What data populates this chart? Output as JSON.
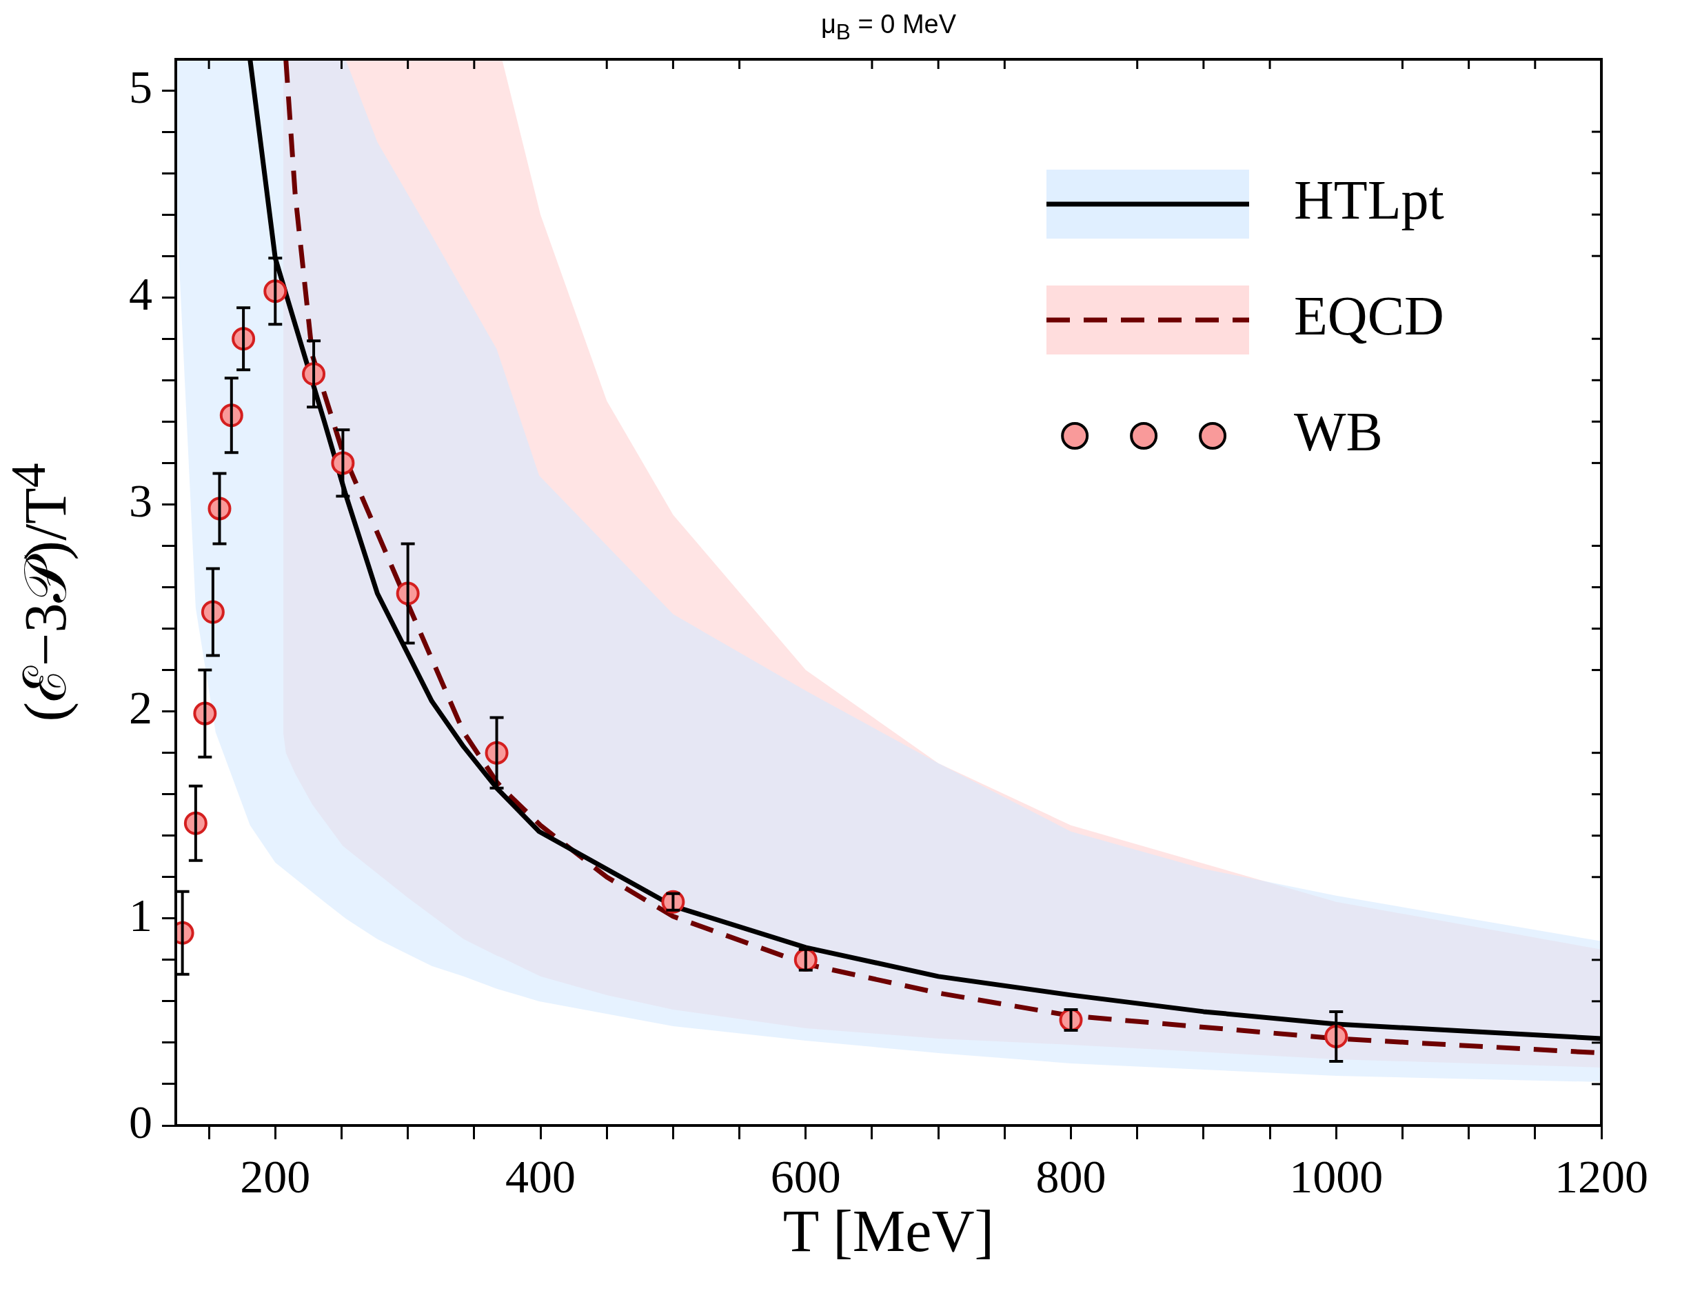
{
  "chart_data": {
    "type": "line",
    "title": "μ$_{B}$ = 0 MeV",
    "xlabel": "T [MeV]",
    "ylabel": "(ℰ−3𝒫)/T$^{4}$",
    "xlim": [
      125,
      1200
    ],
    "xticks": [
      {
        "value": 150,
        "label": null
      },
      200,
      {
        "value": 250,
        "label": null
      },
      {
        "value": 300,
        "label": null
      },
      {
        "value": 350,
        "label": null
      },
      400,
      {
        "value": 450,
        "label": null
      },
      {
        "value": 500,
        "label": null
      },
      {
        "value": 550,
        "label": null
      },
      600,
      {
        "value": 650,
        "label": null
      },
      {
        "value": 700,
        "label": null
      },
      {
        "value": 750,
        "label": null
      },
      800,
      {
        "value": 850,
        "label": null
      },
      {
        "value": 900,
        "label": null
      },
      {
        "value": 950,
        "label": null
      },
      1000,
      {
        "value": 1050,
        "label": null
      },
      {
        "value": 1100,
        "label": null
      },
      {
        "value": 1150,
        "label": null
      },
      1200
    ],
    "ylim": [
      0,
      5.15
    ],
    "yticks": [
      0,
      {
        "value": 0.2,
        "label": null
      },
      {
        "value": 0.4,
        "label": null
      },
      {
        "value": 0.6,
        "label": null
      },
      {
        "value": 0.8,
        "label": null
      },
      1,
      {
        "value": 1.2,
        "label": null
      },
      {
        "value": 1.4,
        "label": null
      },
      {
        "value": 1.6,
        "label": null
      },
      {
        "value": 1.8,
        "label": null
      },
      2,
      {
        "value": 2.2,
        "label": null
      },
      {
        "value": 2.4,
        "label": null
      },
      {
        "value": 2.6,
        "label": null
      },
      {
        "value": 2.8,
        "label": null
      },
      3,
      {
        "value": 3.2,
        "label": null
      },
      {
        "value": 3.4,
        "label": null
      },
      {
        "value": 3.6,
        "label": null
      },
      {
        "value": 3.8,
        "label": null
      },
      4,
      {
        "value": 4.2,
        "label": null
      },
      {
        "value": 4.4,
        "label": null
      },
      {
        "value": 4.6,
        "label": null
      },
      {
        "value": 4.8,
        "label": null
      },
      5
    ],
    "grid": false,
    "legend": "top right",
    "series": [
      {
        "name": "HTLpt",
        "color": "#000000",
        "line_style": "solid",
        "marker": "none",
        "x": [
          125,
          140,
          155,
          181,
          200,
          237,
          253,
          277,
          318,
          342,
          367,
          399,
          500,
          600,
          700,
          800,
          900,
          1000,
          1200
        ],
        "values": [
          null,
          null,
          null,
          5.15,
          4.19,
          3.4,
          3.05,
          2.57,
          2.05,
          1.83,
          1.63,
          1.42,
          1.06,
          0.86,
          0.72,
          0.63,
          0.55,
          0.49,
          0.42
        ],
        "upper": [
          5.15,
          5.15,
          5.15,
          5.15,
          5.15,
          5.15,
          5.15,
          4.75,
          4.3,
          4.03,
          3.75,
          3.14,
          2.47,
          2.1,
          1.75,
          1.42,
          1.24,
          1.11,
          0.89
        ],
        "lower": [
          4.5,
          2.5,
          1.9,
          1.45,
          1.27,
          1.08,
          1.0,
          0.9,
          0.77,
          0.72,
          0.66,
          0.6,
          0.48,
          0.41,
          0.35,
          0.3,
          0.27,
          0.24,
          0.21
        ]
      },
      {
        "name": "EQCD",
        "color": "#6e0000",
        "line_style": "dashed",
        "marker": "none",
        "x": [
          206,
          208,
          215,
          228,
          251,
          300,
          342,
          367,
          371,
          400,
          450,
          500,
          600,
          700,
          800,
          1000,
          1200
        ],
        "values": [
          null,
          5.15,
          4.5,
          3.72,
          3.25,
          2.52,
          1.9,
          1.66,
          1.63,
          1.45,
          1.2,
          1.01,
          0.78,
          0.64,
          0.53,
          0.42,
          0.35
        ],
        "upper": [
          5.15,
          5.15,
          5.15,
          5.15,
          5.15,
          5.15,
          5.15,
          5.15,
          5.15,
          4.4,
          3.5,
          2.95,
          2.2,
          1.75,
          1.45,
          1.08,
          0.85
        ],
        "lower": [
          1.9,
          1.8,
          1.7,
          1.55,
          1.35,
          1.1,
          0.9,
          0.82,
          0.81,
          0.72,
          0.63,
          0.56,
          0.47,
          0.42,
          0.39,
          0.32,
          0.28
        ]
      },
      {
        "name": "WB",
        "type": "scatter",
        "color": "#f99a9a",
        "marker": "circle",
        "x": [
          130,
          140,
          147,
          153,
          158,
          167,
          176,
          200,
          229,
          251,
          300,
          367,
          500,
          600,
          800,
          1000
        ],
        "values": [
          0.93,
          1.46,
          1.99,
          2.48,
          2.98,
          3.43,
          3.8,
          4.03,
          3.63,
          3.2,
          2.57,
          1.8,
          1.08,
          0.8,
          0.51,
          0.43
        ],
        "errors": [
          0.2,
          0.18,
          0.21,
          0.21,
          0.17,
          0.18,
          0.15,
          0.16,
          0.16,
          0.16,
          0.24,
          0.17,
          0.04,
          0.05,
          0.05,
          0.12
        ]
      }
    ]
  }
}
